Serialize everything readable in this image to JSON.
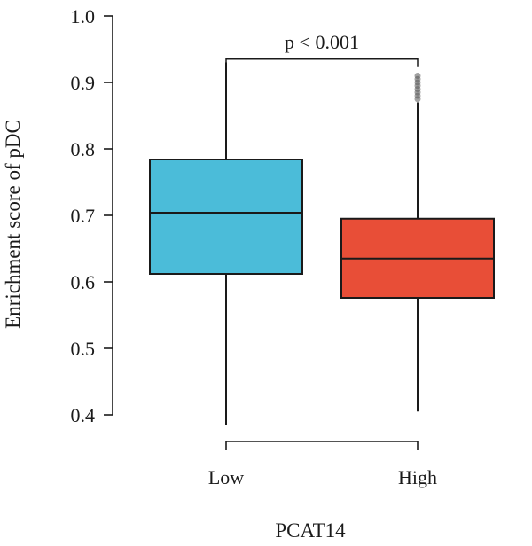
{
  "chart_data": {
    "type": "box",
    "xlabel": "PCAT14",
    "ylabel": "Enrichment score of pDC",
    "ylim": [
      0.4,
      1.0
    ],
    "yticks": [
      "0.4",
      "0.5",
      "0.6",
      "0.7",
      "0.8",
      "0.9",
      "1.0"
    ],
    "categories": [
      "Low",
      "High"
    ],
    "boxes": [
      {
        "group": "Low",
        "min": 0.385,
        "q1": 0.612,
        "median": 0.704,
        "q3": 0.784,
        "max": 0.93,
        "outliers": [],
        "color": "#4bbcd9"
      },
      {
        "group": "High",
        "min": 0.405,
        "q1": 0.576,
        "median": 0.635,
        "q3": 0.695,
        "max": 0.87,
        "outliers": [
          0.875,
          0.88,
          0.885,
          0.89,
          0.895,
          0.9,
          0.905,
          0.91
        ],
        "color": "#e84e37"
      }
    ],
    "annotation": {
      "text": "p < 0.001",
      "y": 0.935
    },
    "grid": false,
    "legend": "none"
  }
}
